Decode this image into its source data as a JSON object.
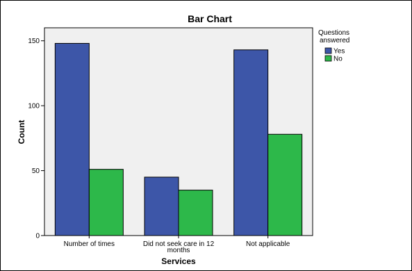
{
  "chart_data": {
    "type": "bar",
    "title": "Bar Chart",
    "xlabel": "Services",
    "ylabel": "Count",
    "categories": [
      "Number of times",
      "Did not seek care in 12 months",
      "Not applicable"
    ],
    "category_labels": [
      [
        "Number of times"
      ],
      [
        "Did not seek care in 12",
        "months"
      ],
      [
        "Not applicable"
      ]
    ],
    "series": [
      {
        "name": "Yes",
        "values": [
          148,
          45,
          143
        ],
        "color": "#3d56a8"
      },
      {
        "name": "No",
        "values": [
          51,
          35,
          78
        ],
        "color": "#2db84a"
      }
    ],
    "ylim": [
      0,
      160
    ],
    "yticks": [
      0,
      50,
      100,
      150
    ],
    "grid": false,
    "legend": {
      "title": [
        "Questions",
        "answered"
      ],
      "position": "top-right"
    },
    "plot_background": "#f0f0f0"
  }
}
